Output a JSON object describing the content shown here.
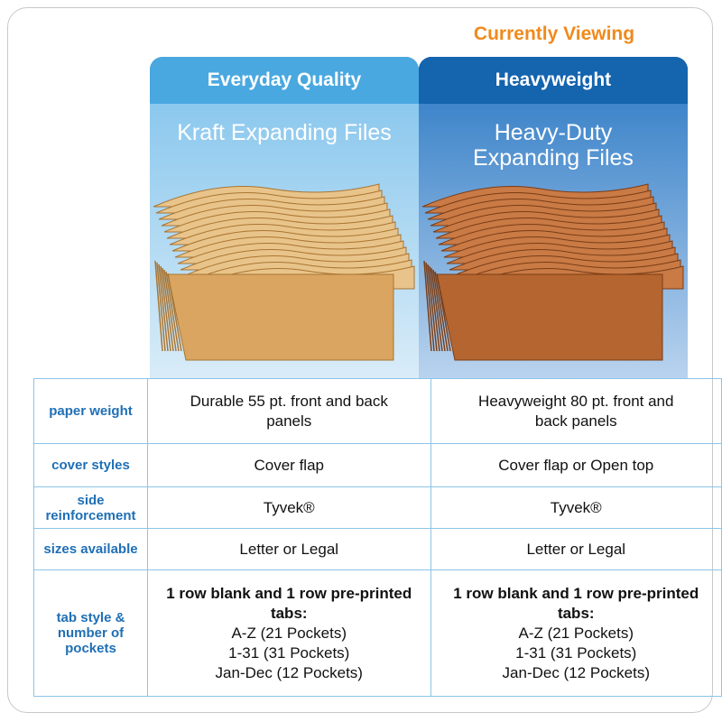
{
  "badge": "Currently Viewing",
  "columns": [
    {
      "title": "Everyday Quality",
      "subtitle": "Kraft Expanding Files"
    },
    {
      "title": "Heavyweight",
      "subtitle": "Heavy-Duty Expanding Files"
    }
  ],
  "rows": [
    {
      "label": "paper weight",
      "values": [
        "Durable 55 pt. front and back panels",
        "Heavyweight 80 pt. front and back panels"
      ]
    },
    {
      "label": "cover styles",
      "values": [
        "Cover flap",
        "Cover flap or Open top"
      ]
    },
    {
      "label": "side reinforcement",
      "values": [
        "Tyvek®",
        "Tyvek®"
      ]
    },
    {
      "label": "sizes available",
      "values": [
        "Letter or Legal",
        "Letter or Legal"
      ]
    },
    {
      "label": "tab style & number of pockets",
      "values": [
        {
          "heading": "1 row blank and 1 row pre-printed tabs:",
          "items": [
            "A-Z (21 Pockets)",
            "1-31 (31 Pockets)",
            "Jan-Dec (12 Pockets)"
          ]
        },
        {
          "heading": "1 row blank and 1 row pre-printed tabs:",
          "items": [
            "A-Z (21 Pockets)",
            "1-31 (31 Pockets)",
            "Jan-Dec (12 Pockets)"
          ]
        }
      ]
    }
  ]
}
